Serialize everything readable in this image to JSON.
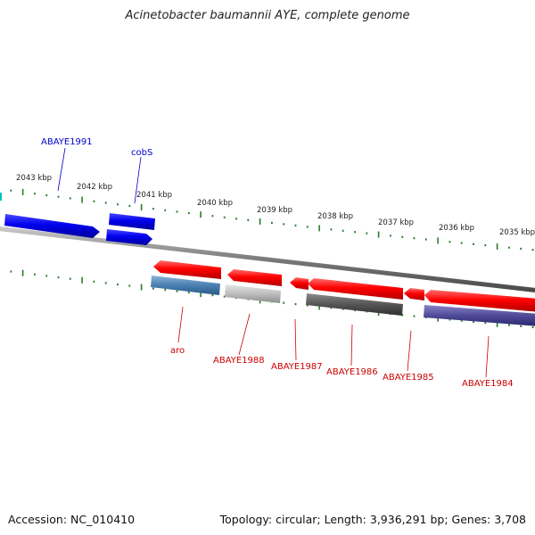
{
  "title": "Acinetobacter baumannii AYE, complete genome",
  "footer": {
    "accession": "Accession: NC_010410",
    "summary": "Topology: circular; Length: 3,936,291 bp; Genes: 3,708"
  },
  "colors": {
    "forward_label": "#0000cc",
    "reverse_label": "#cc0000",
    "tick": "#2a7a2a",
    "backbone": "#8a8a8a"
  },
  "scale_labels": [
    "2043 kbp",
    "2042 kbp",
    "2041 kbp",
    "2040 kbp",
    "2039 kbp",
    "2038 kbp",
    "2037 kbp",
    "2036 kbp",
    "2035 kbp"
  ],
  "forward_labels": [
    "ABAYE1991",
    "cobS"
  ],
  "reverse_labels": [
    "aro",
    "ABAYE1988",
    "ABAYE1987",
    "ABAYE1986",
    "ABAYE1985",
    "ABAYE1984"
  ]
}
